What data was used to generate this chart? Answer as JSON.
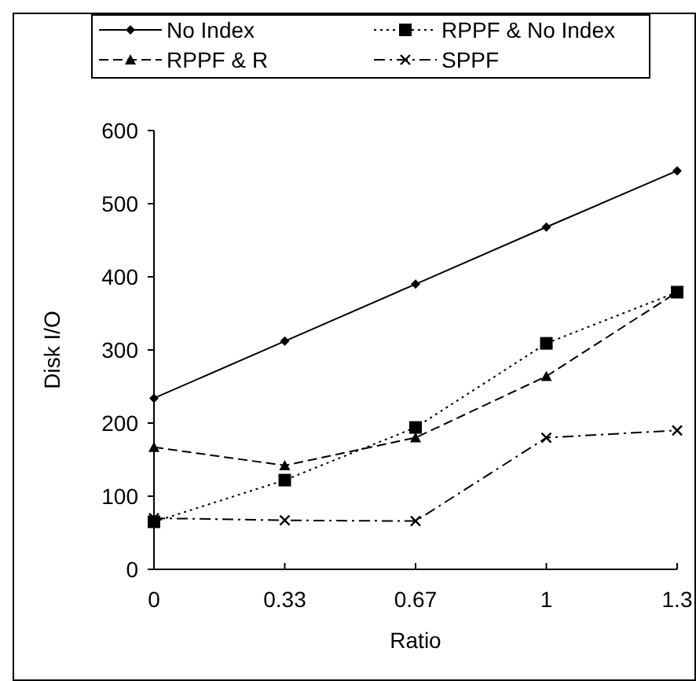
{
  "chart_data": {
    "type": "line",
    "xlabel": "Ratio",
    "ylabel": "Disk I/O",
    "categories": [
      "0",
      "0.33",
      "0.67",
      "1",
      "1.3"
    ],
    "series": [
      {
        "name": "No Index",
        "color": "#000000",
        "values": [
          234,
          312,
          390,
          468,
          545
        ],
        "marker": "diamond",
        "line_style": "solid"
      },
      {
        "name": "RPPF & No Index",
        "color": "#000000",
        "values": [
          65,
          122,
          194,
          309,
          379
        ],
        "marker": "square",
        "line_style": "dotted"
      },
      {
        "name": "RPPF & R",
        "color": "#000000",
        "values": [
          167,
          142,
          180,
          264,
          379
        ],
        "marker": "triangle",
        "line_style": "dashed"
      },
      {
        "name": "SPPF",
        "color": "#000000",
        "values": [
          70,
          67,
          66,
          180,
          190
        ],
        "marker": "cross",
        "line_style": "dashdot"
      }
    ],
    "ylim": [
      0,
      600
    ],
    "yticks": [
      0,
      100,
      200,
      300,
      400,
      500,
      600
    ],
    "grid": false,
    "legend": "top"
  }
}
